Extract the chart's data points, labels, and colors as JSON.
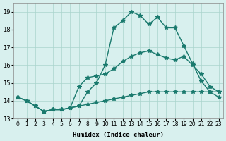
{
  "xlabel": "Humidex (Indice chaleur)",
  "ylabel": "",
  "xlim": [
    -0.5,
    23.5
  ],
  "ylim": [
    13,
    19.5
  ],
  "yticks": [
    13,
    14,
    15,
    16,
    17,
    18,
    19
  ],
  "xticks": [
    0,
    1,
    2,
    3,
    4,
    5,
    6,
    7,
    8,
    9,
    10,
    11,
    12,
    13,
    14,
    15,
    16,
    17,
    18,
    19,
    20,
    21,
    22,
    23
  ],
  "background_color": "#d8f0ee",
  "grid_color": "#aad4cc",
  "line_color": "#1a7a6e",
  "line1": [
    14.2,
    14.0,
    13.7,
    13.4,
    13.5,
    13.5,
    13.6,
    13.7,
    14.5,
    15.0,
    16.0,
    18.1,
    18.5,
    19.0,
    18.8,
    18.3,
    18.7,
    18.1,
    18.1,
    17.1,
    16.1,
    15.1,
    14.5,
    14.2
  ],
  "line2": [
    14.2,
    14.0,
    13.7,
    13.4,
    13.5,
    13.5,
    13.6,
    14.8,
    15.3,
    15.4,
    15.5,
    15.8,
    16.2,
    16.5,
    16.7,
    16.8,
    16.6,
    16.4,
    16.3,
    16.5,
    16.0,
    15.5,
    14.8,
    14.5
  ],
  "line3": [
    14.2,
    14.0,
    13.7,
    13.4,
    13.5,
    13.5,
    13.6,
    13.7,
    13.8,
    13.9,
    14.0,
    14.1,
    14.2,
    14.3,
    14.4,
    14.5,
    14.5,
    14.5,
    14.5,
    14.5,
    14.5,
    14.5,
    14.5,
    14.5
  ]
}
